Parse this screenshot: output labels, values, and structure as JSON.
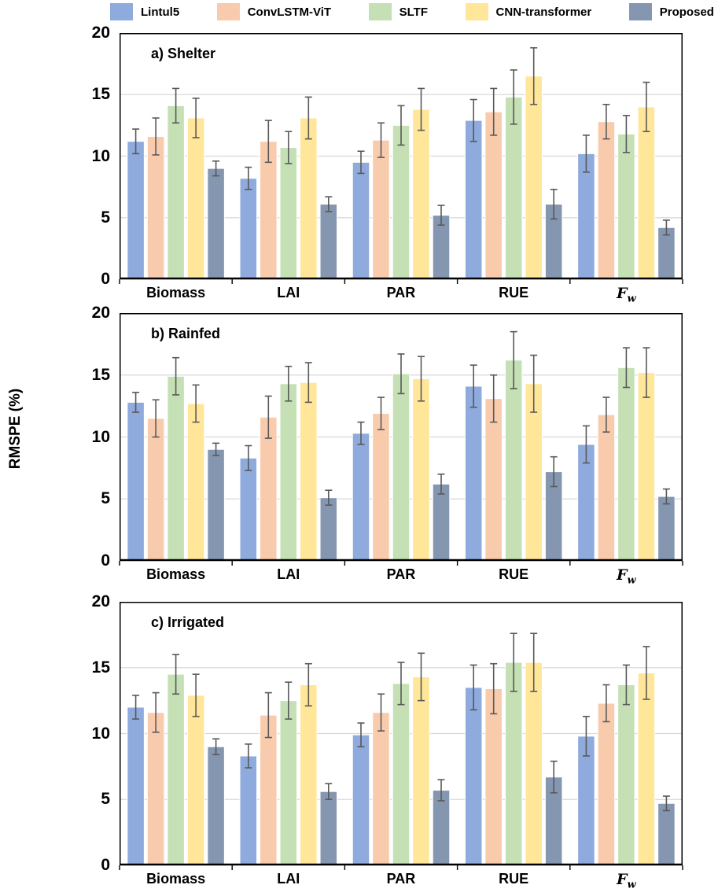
{
  "figure": {
    "ylabel": "RMSPE (%)"
  },
  "legend": {
    "position": "top",
    "items": [
      {
        "label": "Lintul5",
        "color": "#8FAADC"
      },
      {
        "label": "ConvLSTM-ViT",
        "color": "#F8CBAD"
      },
      {
        "label": "SLTF",
        "color": "#C5E0B4"
      },
      {
        "label": "CNN-transformer",
        "color": "#FFE699"
      },
      {
        "label": "Proposed",
        "color": "#8496B0"
      }
    ]
  },
  "axis": {
    "ylim": [
      0,
      20
    ],
    "yticks": [
      0,
      5,
      10,
      15,
      20
    ],
    "grid": "horizontal"
  },
  "style": {
    "gridline_color": "#D9D9D9",
    "error_bar_color": "#595959",
    "border_color": "#000000"
  },
  "categories": [
    {
      "text": "Biomass"
    },
    {
      "text": "LAI"
    },
    {
      "text": "PAR"
    },
    {
      "text": "RUE"
    },
    {
      "text": "F",
      "sub": "w",
      "italic": true
    }
  ],
  "chart_data": [
    {
      "type": "bar",
      "title": "a) Shelter",
      "xlabel": "",
      "ylabel": "RMSPE (%)",
      "ylim": [
        0,
        20
      ],
      "yticks": [
        0,
        5,
        10,
        15,
        20
      ],
      "categories": [
        "Biomass",
        "LAI",
        "PAR",
        "RUE",
        "Fw"
      ],
      "series": [
        {
          "name": "Lintul5",
          "values": [
            11.2,
            8.2,
            9.5,
            12.9,
            10.2
          ],
          "errors": [
            1.0,
            0.9,
            0.9,
            1.7,
            1.5
          ]
        },
        {
          "name": "ConvLSTM-ViT",
          "values": [
            11.6,
            11.2,
            11.3,
            13.6,
            12.8
          ],
          "errors": [
            1.5,
            1.7,
            1.4,
            1.9,
            1.4
          ]
        },
        {
          "name": "SLTF",
          "values": [
            14.1,
            10.7,
            12.5,
            14.8,
            11.8
          ],
          "errors": [
            1.4,
            1.3,
            1.6,
            2.2,
            1.5
          ]
        },
        {
          "name": "CNN-transformer",
          "values": [
            13.1,
            13.1,
            13.8,
            16.5,
            14.0
          ],
          "errors": [
            1.6,
            1.7,
            1.7,
            2.3,
            2.0
          ]
        },
        {
          "name": "Proposed",
          "values": [
            9.0,
            6.1,
            5.2,
            6.1,
            4.2
          ],
          "errors": [
            0.6,
            0.6,
            0.8,
            1.2,
            0.6
          ]
        }
      ]
    },
    {
      "type": "bar",
      "title": "b) Rainfed",
      "xlabel": "",
      "ylabel": "RMSPE (%)",
      "ylim": [
        0,
        20
      ],
      "yticks": [
        0,
        5,
        10,
        15,
        20
      ],
      "categories": [
        "Biomass",
        "LAI",
        "PAR",
        "RUE",
        "Fw"
      ],
      "series": [
        {
          "name": "Lintul5",
          "values": [
            12.8,
            8.3,
            10.3,
            14.1,
            9.4
          ],
          "errors": [
            0.8,
            1.0,
            0.9,
            1.7,
            1.5
          ]
        },
        {
          "name": "ConvLSTM-ViT",
          "values": [
            11.5,
            11.6,
            11.9,
            13.1,
            11.8
          ],
          "errors": [
            1.5,
            1.7,
            1.3,
            1.9,
            1.4
          ]
        },
        {
          "name": "SLTF",
          "values": [
            14.9,
            14.3,
            15.1,
            16.2,
            15.6
          ],
          "errors": [
            1.5,
            1.4,
            1.6,
            2.3,
            1.6
          ]
        },
        {
          "name": "CNN-transformer",
          "values": [
            12.7,
            14.4,
            14.7,
            14.3,
            15.2
          ],
          "errors": [
            1.5,
            1.6,
            1.8,
            2.3,
            2.0
          ]
        },
        {
          "name": "Proposed",
          "values": [
            9.0,
            5.1,
            6.2,
            7.2,
            5.2
          ],
          "errors": [
            0.5,
            0.6,
            0.8,
            1.2,
            0.6
          ]
        }
      ]
    },
    {
      "type": "bar",
      "title": "c) Irrigated",
      "xlabel": "",
      "ylabel": "RMSPE (%)",
      "ylim": [
        0,
        20
      ],
      "yticks": [
        0,
        5,
        10,
        15,
        20
      ],
      "categories": [
        "Biomass",
        "LAI",
        "PAR",
        "RUE",
        "Fw"
      ],
      "series": [
        {
          "name": "Lintul5",
          "values": [
            12.0,
            8.3,
            9.9,
            13.5,
            9.8
          ],
          "errors": [
            0.9,
            0.9,
            0.9,
            1.7,
            1.5
          ]
        },
        {
          "name": "ConvLSTM-ViT",
          "values": [
            11.6,
            11.4,
            11.6,
            13.4,
            12.3
          ],
          "errors": [
            1.5,
            1.7,
            1.4,
            1.9,
            1.4
          ]
        },
        {
          "name": "SLTF",
          "values": [
            14.5,
            12.5,
            13.8,
            15.4,
            13.7
          ],
          "errors": [
            1.5,
            1.4,
            1.6,
            2.2,
            1.5
          ]
        },
        {
          "name": "CNN-transformer",
          "values": [
            12.9,
            13.7,
            14.3,
            15.4,
            14.6
          ],
          "errors": [
            1.6,
            1.6,
            1.8,
            2.2,
            2.0
          ]
        },
        {
          "name": "Proposed",
          "values": [
            9.0,
            5.6,
            5.7,
            6.7,
            4.7
          ],
          "errors": [
            0.6,
            0.6,
            0.8,
            1.2,
            0.55
          ]
        }
      ]
    }
  ]
}
